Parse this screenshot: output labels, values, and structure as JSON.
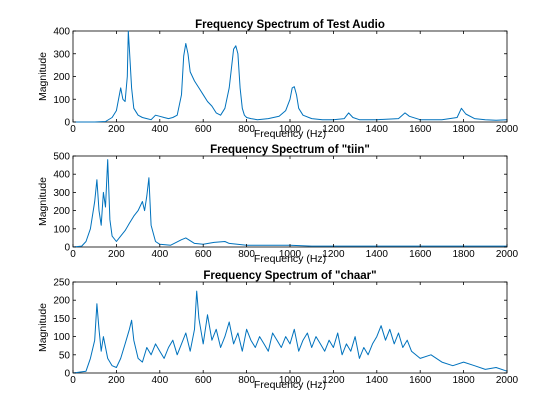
{
  "chart_data": [
    {
      "type": "line",
      "title": "Frequency Spectrum of Test Audio",
      "xlabel": "Frequency (Hz)",
      "ylabel": "Magnitude",
      "xlim": [
        0,
        2000
      ],
      "ylim": [
        0,
        400
      ],
      "xticks": [
        "0",
        "200",
        "400",
        "600",
        "800",
        "1000",
        "1200",
        "1400",
        "1600",
        "1800",
        "2000"
      ],
      "yticks": [
        "0",
        "100",
        "200",
        "300",
        "400"
      ],
      "grid": false,
      "color": "#0072bd",
      "series": [
        {
          "x": [
            0,
            100,
            150,
            180,
            200,
            220,
            230,
            240,
            250,
            255,
            260,
            270,
            280,
            300,
            320,
            340,
            360,
            380,
            400,
            420,
            440,
            460,
            480,
            500,
            510,
            520,
            530,
            540,
            560,
            580,
            600,
            620,
            640,
            660,
            680,
            700,
            720,
            740,
            750,
            760,
            770,
            780,
            790,
            800,
            820,
            850,
            900,
            950,
            980,
            1000,
            1010,
            1020,
            1030,
            1040,
            1060,
            1100,
            1150,
            1200,
            1250,
            1270,
            1290,
            1320,
            1400,
            1500,
            1530,
            1550,
            1600,
            1700,
            1770,
            1790,
            1810,
            1850,
            1900,
            1950,
            2000
          ],
          "y": [
            0,
            0,
            2,
            20,
            50,
            150,
            100,
            90,
            200,
            400,
            320,
            150,
            60,
            30,
            20,
            15,
            10,
            30,
            25,
            20,
            15,
            20,
            30,
            120,
            290,
            345,
            300,
            220,
            180,
            150,
            120,
            90,
            70,
            40,
            30,
            60,
            150,
            320,
            335,
            300,
            150,
            60,
            30,
            20,
            15,
            10,
            15,
            25,
            50,
            100,
            150,
            155,
            120,
            60,
            30,
            15,
            10,
            10,
            15,
            40,
            20,
            10,
            10,
            15,
            40,
            25,
            10,
            10,
            20,
            60,
            35,
            15,
            10,
            8,
            10
          ]
        }
      ]
    },
    {
      "type": "line",
      "title": "Frequency Spectrum of \"tiin\"",
      "xlabel": "Frequency (Hz)",
      "ylabel": "Magnitude",
      "xlim": [
        0,
        2000
      ],
      "ylim": [
        0,
        500
      ],
      "xticks": [
        "0",
        "200",
        "400",
        "600",
        "800",
        "1000",
        "1200",
        "1400",
        "1600",
        "1800",
        "2000"
      ],
      "yticks": [
        "0",
        "100",
        "200",
        "300",
        "400",
        "500"
      ],
      "grid": false,
      "color": "#0072bd",
      "series": [
        {
          "x": [
            0,
            40,
            60,
            80,
            100,
            110,
            120,
            130,
            140,
            150,
            160,
            170,
            180,
            200,
            220,
            240,
            260,
            280,
            300,
            320,
            330,
            340,
            350,
            360,
            380,
            400,
            450,
            500,
            520,
            560,
            600,
            650,
            700,
            720,
            800,
            1000,
            1100,
            1200,
            1400,
            1600,
            1800,
            2000
          ],
          "y": [
            0,
            5,
            30,
            100,
            250,
            370,
            200,
            120,
            300,
            220,
            480,
            150,
            60,
            30,
            60,
            90,
            130,
            170,
            200,
            250,
            200,
            280,
            380,
            120,
            30,
            15,
            10,
            40,
            50,
            20,
            15,
            25,
            30,
            20,
            10,
            10,
            5,
            5,
            5,
            5,
            5,
            5
          ]
        }
      ]
    },
    {
      "type": "line",
      "title": "Frequency Spectrum of \"chaar\"",
      "xlabel": "Frequency (Hz)",
      "ylabel": "Magnitude",
      "xlim": [
        0,
        2000
      ],
      "ylim": [
        0,
        250
      ],
      "xticks": [
        "0",
        "200",
        "400",
        "600",
        "800",
        "1000",
        "1200",
        "1400",
        "1600",
        "1800",
        "2000"
      ],
      "yticks": [
        "0",
        "50",
        "100",
        "150",
        "200",
        "250"
      ],
      "grid": false,
      "color": "#0072bd",
      "series": [
        {
          "x": [
            0,
            60,
            80,
            100,
            110,
            120,
            130,
            140,
            160,
            180,
            200,
            220,
            240,
            260,
            270,
            280,
            300,
            320,
            340,
            360,
            380,
            400,
            420,
            440,
            460,
            480,
            500,
            520,
            540,
            560,
            570,
            580,
            600,
            620,
            640,
            660,
            680,
            700,
            720,
            740,
            760,
            780,
            800,
            820,
            840,
            860,
            880,
            900,
            920,
            940,
            960,
            980,
            1000,
            1020,
            1040,
            1060,
            1080,
            1100,
            1120,
            1140,
            1160,
            1180,
            1200,
            1220,
            1240,
            1260,
            1280,
            1300,
            1320,
            1340,
            1360,
            1380,
            1400,
            1420,
            1440,
            1460,
            1480,
            1500,
            1520,
            1540,
            1560,
            1600,
            1650,
            1700,
            1750,
            1800,
            1850,
            1900,
            1950,
            2000
          ],
          "y": [
            0,
            5,
            40,
            90,
            190,
            120,
            60,
            100,
            40,
            20,
            15,
            40,
            80,
            120,
            145,
            90,
            40,
            30,
            70,
            50,
            80,
            60,
            40,
            70,
            90,
            50,
            80,
            110,
            60,
            120,
            225,
            150,
            80,
            160,
            90,
            120,
            70,
            100,
            140,
            80,
            110,
            60,
            120,
            90,
            70,
            100,
            80,
            60,
            110,
            90,
            70,
            100,
            80,
            120,
            60,
            90,
            110,
            70,
            100,
            80,
            60,
            90,
            70,
            110,
            50,
            80,
            60,
            100,
            40,
            70,
            50,
            80,
            100,
            130,
            90,
            120,
            80,
            110,
            70,
            90,
            60,
            40,
            50,
            30,
            20,
            30,
            20,
            10,
            15,
            5
          ]
        }
      ]
    }
  ]
}
